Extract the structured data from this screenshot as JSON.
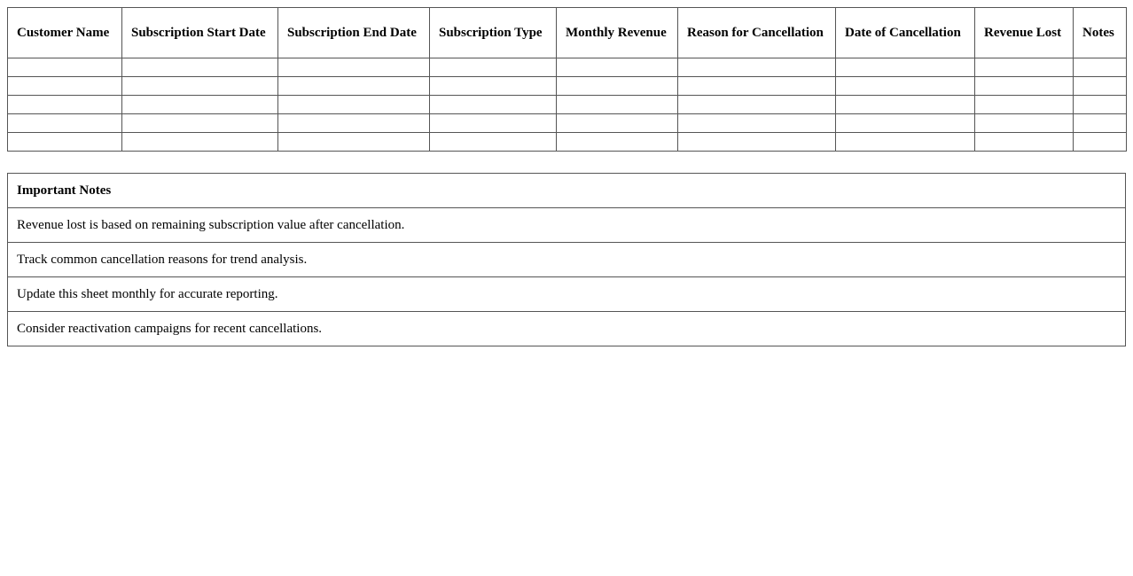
{
  "main_table": {
    "headers": [
      "Customer Name",
      "Subscription Start Date",
      "Subscription End Date",
      "Subscription Type",
      "Monthly Revenue",
      "Reason for Cancellation",
      "Date of Cancellation",
      "Revenue Lost",
      "Notes"
    ],
    "empty_rows": 5
  },
  "notes_table": {
    "title": "Important Notes",
    "items": [
      "Revenue lost is based on remaining subscription value after cancellation.",
      "Track common cancellation reasons for trend analysis.",
      "Update this sheet monthly for accurate reporting.",
      "Consider reactivation campaigns for recent cancellations."
    ]
  }
}
